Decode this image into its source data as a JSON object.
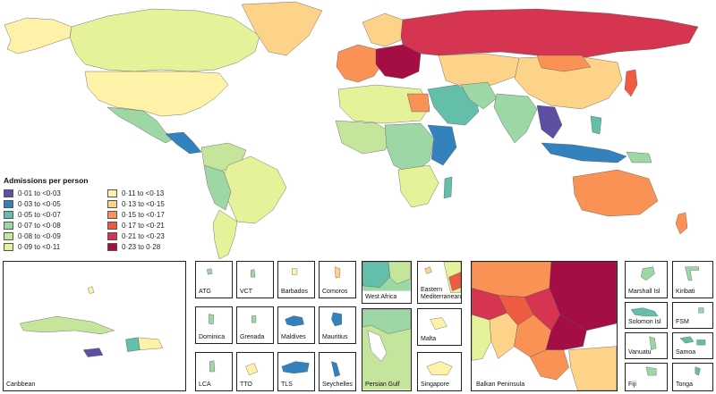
{
  "legend": {
    "title": "Admissions per person",
    "items": [
      {
        "label": "0·01 to <0·03",
        "color": "#5e4fa2"
      },
      {
        "label": "0·11 to <0·13",
        "color": "#fdf2a8"
      },
      {
        "label": "0·03 to <0·05",
        "color": "#3482bd"
      },
      {
        "label": "0·13 to <0·15",
        "color": "#fdd38a"
      },
      {
        "label": "0·05 to <0·07",
        "color": "#63bfa9"
      },
      {
        "label": "0·15 to <0·17",
        "color": "#f99254"
      },
      {
        "label": "0·07 to <0·08",
        "color": "#9dd7a5"
      },
      {
        "label": "0·17 to <0·21",
        "color": "#ee5a42"
      },
      {
        "label": "0·08 to <0·09",
        "color": "#c6e59c"
      },
      {
        "label": "0·21 to <0·23",
        "color": "#d53550"
      },
      {
        "label": "0·09 to <0·11",
        "color": "#e6f29a"
      },
      {
        "label": "0·23 to 0·28",
        "color": "#a50d45"
      }
    ]
  },
  "insets": {
    "caribbean": "Caribbean",
    "atg": "ATG",
    "vct": "VCT",
    "barbados": "Barbados",
    "comoros": "Comoros",
    "dominica": "Dominica",
    "grenada": "Grenada",
    "maldives": "Maldives",
    "mauritius": "Mauritius",
    "lca": "LCA",
    "tto": "TTO",
    "tls": "TLS",
    "seychelles": "Seychelles",
    "west_africa": "West Africa",
    "eastern_med": "Eastern Mediterranean",
    "persian_gulf": "Persian Gulf",
    "malta": "Malta",
    "singapore": "Singapore",
    "balkan": "Balkan Peninsula",
    "marshall": "Marshall Isl",
    "kiribati": "Kiribati",
    "solomon": "Solomon Isl",
    "fsm": "FSM",
    "vanuatu": "Vanuatu",
    "samoa": "Samoa",
    "fiji": "Fiji",
    "tonga": "Tonga"
  }
}
